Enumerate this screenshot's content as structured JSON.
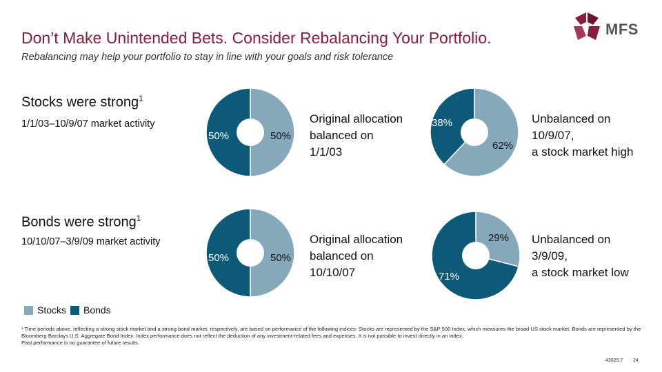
{
  "header": {
    "title": "Don’t Make Unintended Bets. Consider Rebalancing Your Portfolio.",
    "subtitle": "Rebalancing may help your portfolio to stay in line with your goals and risk tolerance",
    "logo_text": "MFS",
    "logo_mark": "®"
  },
  "colors": {
    "stocks": "#85a9ba",
    "bonds": "#0c5a78",
    "title": "#8c1d3a",
    "logo": "#8c1d3a"
  },
  "sections": [
    {
      "title": "Stocks were strong",
      "sup": "1",
      "period": "1/1/03–10/9/07 market activity"
    },
    {
      "title": "Bonds were strong",
      "sup": "1",
      "period": "10/10/07–3/9/09 market activity"
    }
  ],
  "chart_data": [
    {
      "type": "pie",
      "labels": [
        "Stocks",
        "Bonds"
      ],
      "values": [
        50,
        50
      ],
      "value_labels": [
        "50%",
        "50%"
      ],
      "description": "Original allocation balanced on 1/1/03"
    },
    {
      "type": "pie",
      "labels": [
        "Stocks",
        "Bonds"
      ],
      "values": [
        62,
        38
      ],
      "value_labels": [
        "62%",
        "38%"
      ],
      "description": "Unbalanced on 10/9/07, a stock market high"
    },
    {
      "type": "pie",
      "labels": [
        "Stocks",
        "Bonds"
      ],
      "values": [
        50,
        50
      ],
      "value_labels": [
        "50%",
        "50%"
      ],
      "description": "Original allocation balanced on 10/10/07"
    },
    {
      "type": "pie",
      "labels": [
        "Stocks",
        "Bonds"
      ],
      "values": [
        29,
        71
      ],
      "value_labels": [
        "29%",
        "71%"
      ],
      "description": "Unbalanced on 3/9/09, a stock market low"
    }
  ],
  "descriptions": [
    [
      "Original allocation",
      "balanced on",
      "1/1/03"
    ],
    [
      "Unbalanced on",
      "10/9/07,",
      "a stock market high"
    ],
    [
      "Original allocation",
      "balanced on",
      "10/10/07"
    ],
    [
      "Unbalanced on",
      "3/9/09,",
      "a stock market low"
    ]
  ],
  "legend": {
    "stocks": "Stocks",
    "bonds": "Bonds"
  },
  "footnote": {
    "line1": "¹ Time periods above, reflecting a strong stock market and a strong bond market, respectively, are based on performance of the following indices: Stocks are represented by the S&P 500 Index, which measures the broad US stock market. Bonds are represented by the Bloomberg Barclays U.S. Aggregate Bond Index. Index performance does not reflect the deduction of any investment-related fees and expenses. It is not possible to invest directly in an index.",
    "line2": "Past performance is no guarantee of future results."
  },
  "page": {
    "code": "43029.7",
    "number": "24"
  }
}
